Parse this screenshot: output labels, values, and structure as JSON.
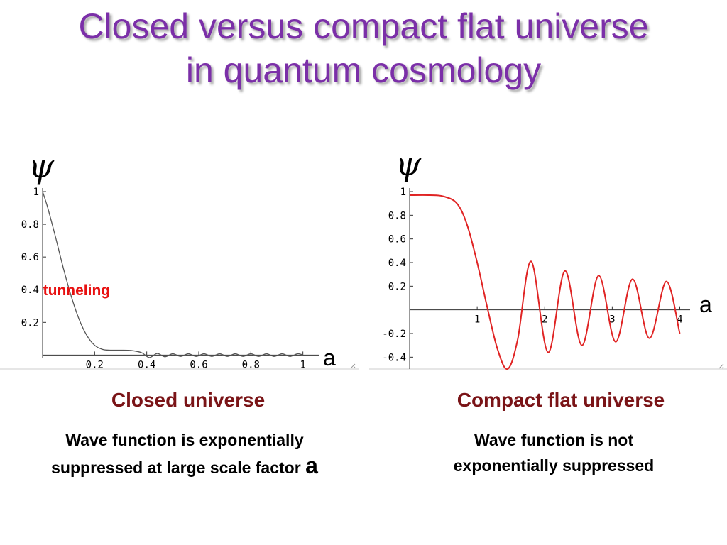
{
  "slide": {
    "title_line1": "Closed versus compact flat universe",
    "title_line2": "in quantum cosmology",
    "title_color": "#7b2fa8",
    "caption_color": "#7a1417"
  },
  "left": {
    "caption": "Closed universe",
    "desc_line1": "Wave function is exponentially",
    "desc_line2": "suppressed at large scale factor",
    "desc_var": "a"
  },
  "right": {
    "caption": "Compact flat universe",
    "desc_line1": "Wave function is not",
    "desc_line2": "exponentially suppressed"
  },
  "chart_data": [
    {
      "type": "line",
      "ylabel": "ψ",
      "xlabel": "a",
      "xlim": [
        0,
        1.05
      ],
      "ylim": [
        -0.02,
        1
      ],
      "x_ticks": [
        0.2,
        0.4,
        0.6,
        0.8,
        1
      ],
      "x_tick_labels": [
        "0.2",
        "0.4",
        "0.6",
        "0.8",
        "1"
      ],
      "y_ticks": [
        0.2,
        0.4,
        0.6,
        0.8,
        1
      ],
      "y_tick_labels": [
        "0.2",
        "0.4",
        "0.6",
        "0.8",
        "1"
      ],
      "annotations": [
        {
          "text": "tunneling",
          "x": 0.01,
          "y": 0.4
        }
      ],
      "series": [
        {
          "color": "#555555",
          "x": [
            0,
            0.02,
            0.05,
            0.08,
            0.11,
            0.14,
            0.17,
            0.2,
            0.23,
            0.26,
            0.3,
            0.34,
            0.38,
            0.41,
            0.44,
            0.47,
            0.5,
            0.53,
            0.56,
            0.59,
            0.62,
            0.65,
            0.68,
            0.71,
            0.74,
            0.77,
            0.8,
            0.83,
            0.86,
            0.89,
            0.92,
            0.95,
            0.98,
            1.0
          ],
          "y": [
            1.0,
            0.9,
            0.72,
            0.53,
            0.36,
            0.22,
            0.12,
            0.06,
            0.035,
            0.03,
            0.03,
            0.028,
            0.015,
            -0.015,
            0.01,
            -0.01,
            0.008,
            -0.008,
            0.008,
            -0.008,
            0.008,
            -0.008,
            0.008,
            -0.008,
            0.008,
            -0.008,
            0.008,
            -0.008,
            0.008,
            -0.008,
            0.008,
            -0.008,
            0.008,
            0.0
          ]
        }
      ]
    },
    {
      "type": "line",
      "ylabel": "ψ",
      "xlabel": "a",
      "xlim": [
        0,
        4.1
      ],
      "ylim": [
        -0.5,
        1
      ],
      "x_ticks": [
        1,
        2,
        3,
        4
      ],
      "x_tick_labels": [
        "1",
        "2",
        "3",
        "4"
      ],
      "y_ticks": [
        -0.4,
        -0.2,
        0.2,
        0.4,
        0.6,
        0.8,
        1
      ],
      "y_tick_labels": [
        "-0.4",
        "-0.2",
        "0.2",
        "0.4",
        "0.6",
        "0.8",
        "1"
      ],
      "series": [
        {
          "color": "#e02424",
          "x": [
            0,
            0.3,
            0.5,
            0.7,
            0.85,
            1.0,
            1.15,
            1.3,
            1.45,
            1.6,
            1.8,
            2.05,
            2.3,
            2.55,
            2.8,
            3.05,
            3.3,
            3.55,
            3.8,
            4.0
          ],
          "y": [
            0.97,
            0.97,
            0.96,
            0.9,
            0.72,
            0.4,
            0.02,
            -0.33,
            -0.5,
            -0.25,
            0.41,
            -0.36,
            0.33,
            -0.3,
            0.29,
            -0.27,
            0.26,
            -0.24,
            0.24,
            -0.2
          ]
        }
      ]
    }
  ]
}
